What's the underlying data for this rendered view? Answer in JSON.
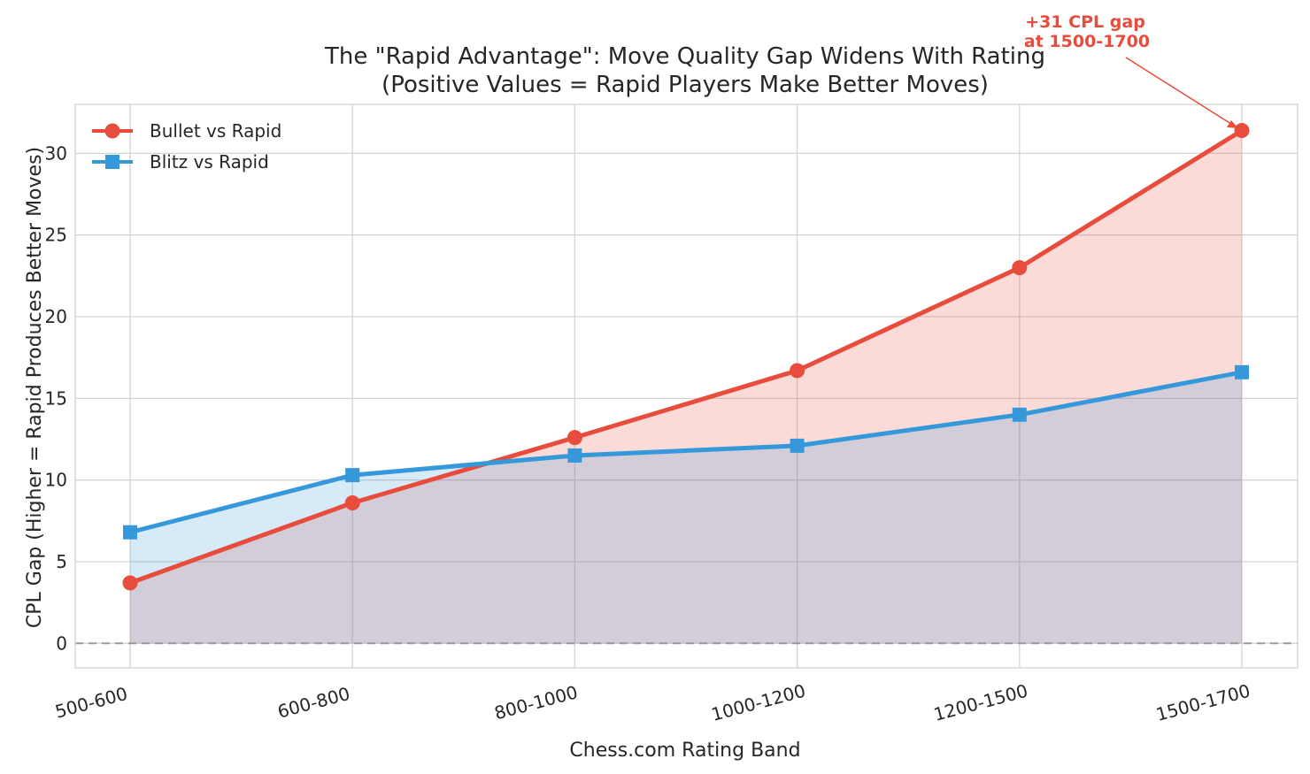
{
  "chart_data": {
    "type": "line",
    "title": "The \"Rapid Advantage\": Move Quality Gap Widens With Rating",
    "subtitle": "(Positive Values = Rapid Players Make Better Moves)",
    "xlabel": "Chess.com Rating Band",
    "ylabel": "CPL Gap (Higher = Rapid Produces Better Moves)",
    "categories": [
      "500-600",
      "600-800",
      "800-1000",
      "1000-1200",
      "1200-1500",
      "1500-1700"
    ],
    "ylim": [
      -1.5,
      33
    ],
    "yticks": [
      0,
      5,
      10,
      15,
      20,
      25,
      30
    ],
    "grid": true,
    "legend_position": "top-left",
    "series": [
      {
        "name": "Bullet vs Rapid",
        "marker": "circle",
        "color": "#e74c3c",
        "fill": "#f5c6c1",
        "values": [
          3.7,
          8.6,
          12.6,
          16.7,
          23.0,
          31.4
        ]
      },
      {
        "name": "Blitz vs Rapid",
        "marker": "square",
        "color": "#3498db",
        "fill": "#c2ddf3",
        "values": [
          6.8,
          10.3,
          11.5,
          12.1,
          14.0,
          16.6
        ]
      }
    ],
    "reference_line": {
      "y": 0,
      "style": "dashed",
      "color": "#999999"
    },
    "annotation": {
      "line1": "+31 CPL gap",
      "line2": "at 1500-1700",
      "color": "#e74c3c",
      "target_category": "1500-1700",
      "target_series": "Bullet vs Rapid"
    }
  }
}
